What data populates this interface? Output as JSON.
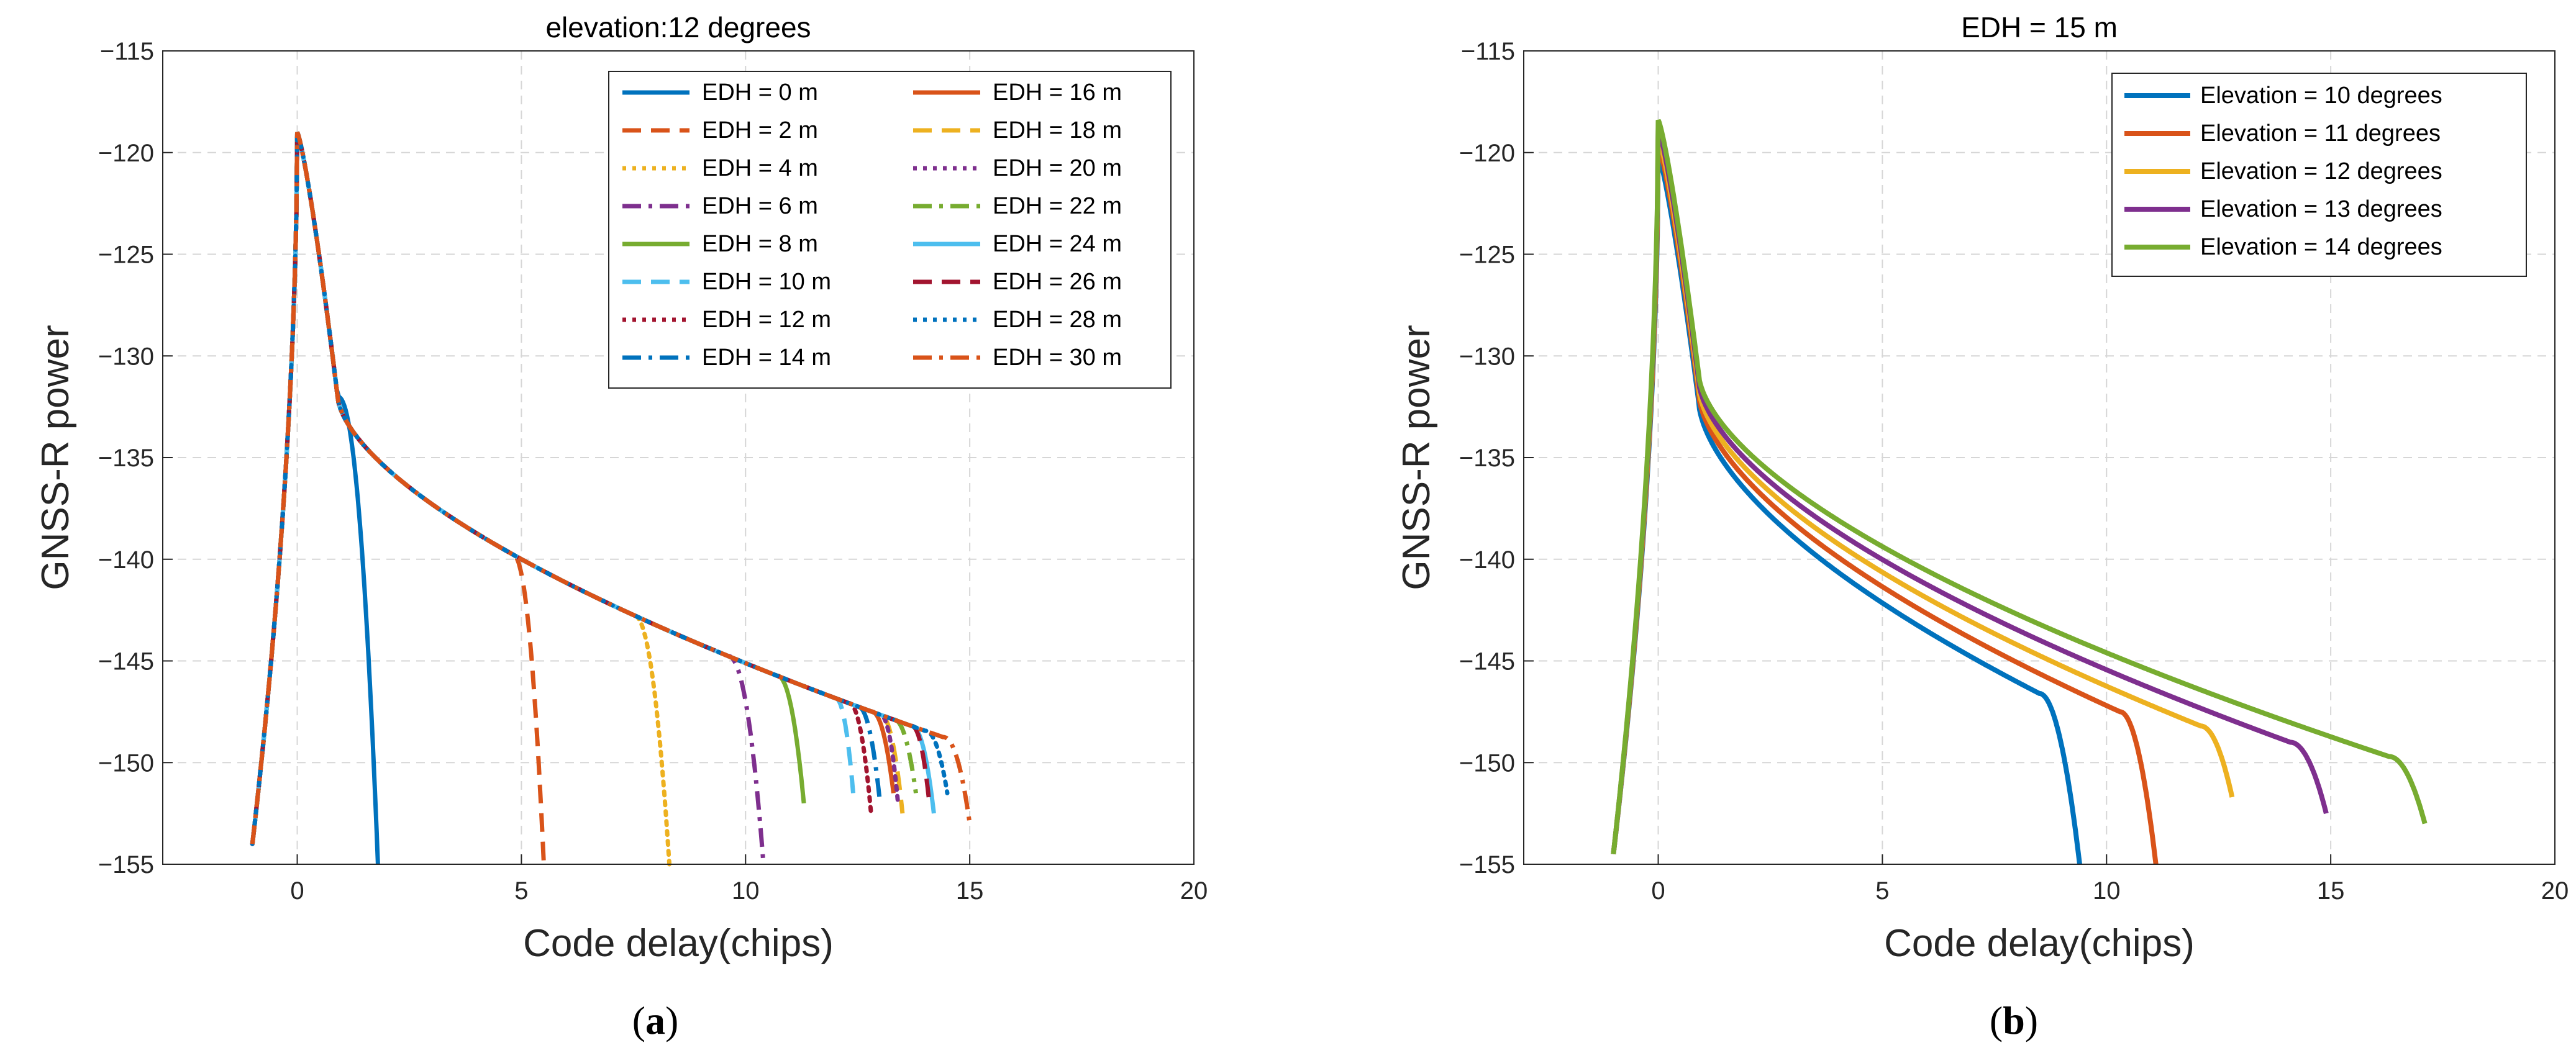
{
  "chart_data": [
    {
      "type": "line",
      "title": "elevation:12 degrees",
      "xlabel": "Code delay(chips)",
      "ylabel": "GNSS-R power",
      "xlim": [
        -3,
        20
      ],
      "ylim": [
        -155,
        -115
      ],
      "xticks": [
        0,
        5,
        10,
        15,
        20
      ],
      "yticks": [
        -115,
        -120,
        -125,
        -130,
        -135,
        -140,
        -145,
        -150,
        -155
      ],
      "grid": true,
      "legend_position": "top-right",
      "legend_columns": 2,
      "caption": "a",
      "series": [
        {
          "name": "EDH = 0 m",
          "color": "#0072BD",
          "style": "solid",
          "drop_start": 0.9,
          "end": 1.8
        },
        {
          "name": "EDH = 2 m",
          "color": "#D95319",
          "style": "dashed",
          "drop_start": 4.8,
          "end": 5.5
        },
        {
          "name": "EDH = 4 m",
          "color": "#EDB120",
          "style": "dotted",
          "drop_start": 7.5,
          "end": 8.3
        },
        {
          "name": "EDH = 6 m",
          "color": "#7E2F8E",
          "style": "dashdot",
          "drop_start": 9.6,
          "end": 10.4
        },
        {
          "name": "EDH = 8 m",
          "color": "#77AC30",
          "style": "solid",
          "drop_start": 10.7,
          "end": 11.3
        },
        {
          "name": "EDH = 10 m",
          "color": "#4DBEEE",
          "style": "dashed",
          "drop_start": 12.0,
          "end": 12.4
        },
        {
          "name": "EDH = 12 m",
          "color": "#A2142F",
          "style": "dotted",
          "drop_start": 12.3,
          "end": 12.8
        },
        {
          "name": "EDH = 14 m",
          "color": "#0072BD",
          "style": "dashdot",
          "drop_start": 12.5,
          "end": 13.0
        },
        {
          "name": "EDH = 16 m",
          "color": "#D95319",
          "style": "solid",
          "drop_start": 12.8,
          "end": 13.3
        },
        {
          "name": "EDH = 18 m",
          "color": "#EDB120",
          "style": "dashed",
          "drop_start": 13.0,
          "end": 13.5
        },
        {
          "name": "EDH = 20 m",
          "color": "#7E2F8E",
          "style": "dotted",
          "drop_start": 13.0,
          "end": 13.4
        },
        {
          "name": "EDH = 22 m",
          "color": "#77AC30",
          "style": "dashdot",
          "drop_start": 13.3,
          "end": 13.8
        },
        {
          "name": "EDH = 24 m",
          "color": "#4DBEEE",
          "style": "solid",
          "drop_start": 13.7,
          "end": 14.2
        },
        {
          "name": "EDH = 26 m",
          "color": "#A2142F",
          "style": "dashed",
          "drop_start": 13.7,
          "end": 14.1
        },
        {
          "name": "EDH = 28 m",
          "color": "#0072BD",
          "style": "dotted",
          "drop_start": 14.0,
          "end": 14.5
        },
        {
          "name": "EDH = 30 m",
          "color": "#D95319",
          "style": "dashdot",
          "drop_start": 14.4,
          "end": 15.0
        }
      ]
    },
    {
      "type": "line",
      "title": "EDH = 15 m",
      "xlabel": "Code delay(chips)",
      "ylabel": "GNSS-R power",
      "xlim": [
        -3,
        20
      ],
      "ylim": [
        -155,
        -115
      ],
      "xticks": [
        0,
        5,
        10,
        15,
        20
      ],
      "yticks": [
        -115,
        -120,
        -125,
        -130,
        -135,
        -140,
        -145,
        -150,
        -155
      ],
      "grid": true,
      "legend_position": "top-right",
      "legend_columns": 1,
      "caption": "b",
      "series": [
        {
          "name": "Elevation = 10 degrees",
          "color": "#0072BD",
          "style": "solid",
          "peak": -120.1,
          "tail_end": -146.6,
          "drop_start": 8.5,
          "end_x": 9.4,
          "end_y": -155
        },
        {
          "name": "Elevation = 11 degrees",
          "color": "#D95319",
          "style": "solid",
          "peak": -119.6,
          "tail_end": -147.5,
          "drop_start": 10.3,
          "end_x": 11.1,
          "end_y": -155
        },
        {
          "name": "Elevation = 12 degrees",
          "color": "#EDB120",
          "style": "solid",
          "peak": -119.2,
          "tail_end": -148.2,
          "drop_start": 12.1,
          "end_x": 12.8,
          "end_y": -151.7
        },
        {
          "name": "Elevation = 13 degrees",
          "color": "#7E2F8E",
          "style": "solid",
          "peak": -118.8,
          "tail_end": -149.0,
          "drop_start": 14.1,
          "end_x": 14.9,
          "end_y": -152.5
        },
        {
          "name": "Elevation = 14 degrees",
          "color": "#77AC30",
          "style": "solid",
          "peak": -118.4,
          "tail_end": -149.7,
          "drop_start": 16.3,
          "end_x": 17.1,
          "end_y": -153.0
        }
      ]
    }
  ]
}
